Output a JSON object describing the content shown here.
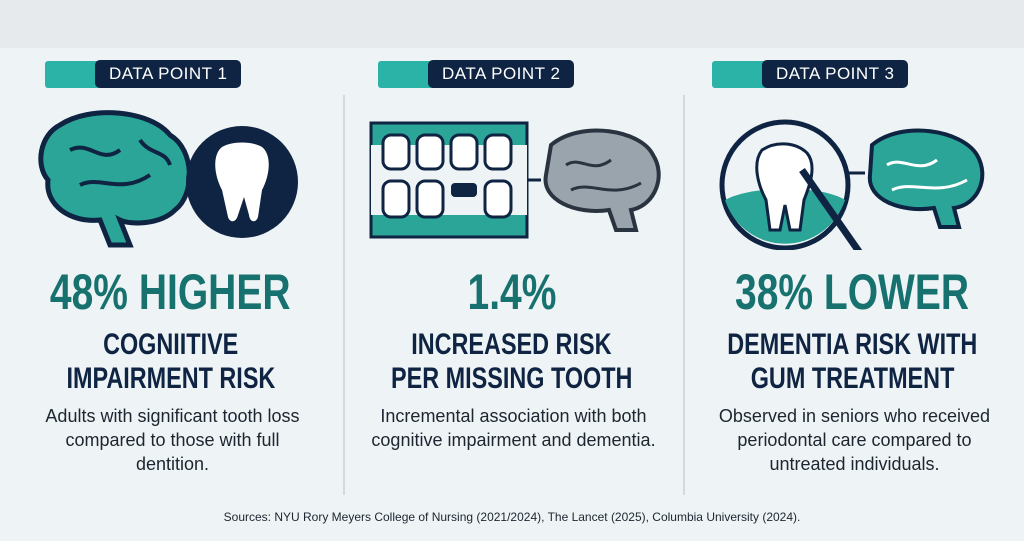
{
  "columns": [
    {
      "badge": "DATA POINT 1",
      "headline": "48% HIGHER",
      "subhead": [
        "COGNIITIVE",
        "IMPAIRMENT RISK"
      ],
      "description": "Adults with significant tooth loss compared to those with full dentition."
    },
    {
      "badge": "DATA POINT 2",
      "headline": "1.4%",
      "subhead": [
        "INCREASED RISK",
        "PER MISSING TOOTH"
      ],
      "description": "Incremental association with both cognitive impairment and dementia."
    },
    {
      "badge": "DATA POINT 3",
      "headline": "38% LOWER",
      "subhead": [
        "DEMENTIA RISK WITH",
        "GUM TREATMENT"
      ],
      "description": "Observed in seniors who received periodontal care compared to untreated individuals."
    }
  ],
  "sources": "Sources: NYU Rory Meyers College of Nursing (2021/2024), The Lancet (2025), Columbia University (2024)."
}
